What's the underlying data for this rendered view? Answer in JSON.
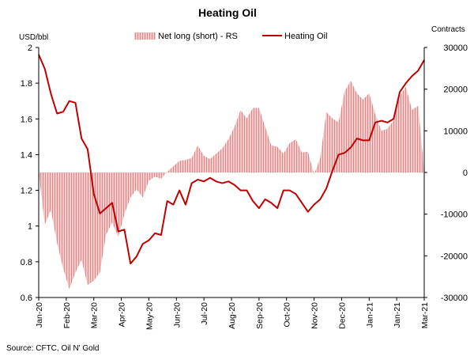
{
  "chart_data": {
    "type": "line",
    "title": "Heating Oil",
    "left_axis_unit": "USD/bbl",
    "right_axis_unit": "Contracts",
    "left_ylim": [
      0.6,
      2.0
    ],
    "left_ticks": [
      "0.6",
      "0.8",
      "1",
      "1.2",
      "1.4",
      "1.6",
      "1.8",
      "2"
    ],
    "right_ylim": [
      -30000,
      30000
    ],
    "right_ticks": [
      "-30000",
      "-20000",
      "-10000",
      "0",
      "10000",
      "20000",
      "30000"
    ],
    "x_labels": [
      "Jan-20",
      "Feb-20",
      "Mar-20",
      "Apr-20",
      "May-20",
      "Jun-20",
      "Jul-20",
      "Aug-20",
      "Sep-20",
      "Oct-20",
      "Nov-20",
      "Dec-20",
      "Jan-21",
      "Jan-21",
      "Mar-21"
    ],
    "grid": false,
    "legend_position": "top",
    "series": [
      {
        "name": "Net long (short) - RS",
        "type": "area",
        "axis": "right",
        "color": "#e6aaaa",
        "values": [
          0,
          -12500,
          -9000,
          -17000,
          -23000,
          -28000,
          -24000,
          -21000,
          -27000,
          -26000,
          -24000,
          -15000,
          -12000,
          -15500,
          -10000,
          -6000,
          -4000,
          -6000,
          -2000,
          -1000,
          -1500,
          200,
          1500,
          2800,
          3000,
          3500,
          6500,
          4000,
          3200,
          4500,
          5800,
          8000,
          11000,
          15000,
          13000,
          15500,
          15500,
          11000,
          6500,
          6200,
          4500,
          7000,
          8000,
          4800,
          5000,
          -500,
          3500,
          14500,
          13000,
          12000,
          19500,
          22000,
          19000,
          17500,
          19000,
          14000,
          10000,
          10500,
          12500,
          18500,
          20500,
          15000,
          16000,
          0
        ],
        "x": [
          0,
          1,
          2,
          3,
          4,
          5,
          6,
          7,
          8,
          9,
          10,
          11,
          12,
          13,
          14,
          15,
          16,
          17,
          18,
          19,
          20,
          21,
          22,
          23,
          24,
          25,
          26,
          27,
          28,
          29,
          30,
          31,
          32,
          33,
          34,
          35,
          36,
          37,
          38,
          39,
          40,
          41,
          42,
          43,
          44,
          45,
          46,
          47,
          48,
          49,
          50,
          51,
          52,
          53,
          54,
          55,
          56,
          57,
          58,
          59,
          60,
          61,
          62,
          63
        ]
      },
      {
        "name": "Heating Oil",
        "type": "line",
        "axis": "left",
        "color": "#c00000",
        "values": [
          1.96,
          1.88,
          1.74,
          1.63,
          1.64,
          1.7,
          1.69,
          1.49,
          1.43,
          1.18,
          1.07,
          1.1,
          1.13,
          0.97,
          0.98,
          0.79,
          0.83,
          0.9,
          0.92,
          0.96,
          0.95,
          1.14,
          1.12,
          1.2,
          1.12,
          1.24,
          1.26,
          1.25,
          1.27,
          1.25,
          1.24,
          1.25,
          1.23,
          1.2,
          1.2,
          1.14,
          1.1,
          1.15,
          1.13,
          1.1,
          1.2,
          1.2,
          1.18,
          1.13,
          1.08,
          1.12,
          1.15,
          1.21,
          1.31,
          1.4,
          1.41,
          1.44,
          1.49,
          1.48,
          1.48,
          1.58,
          1.59,
          1.58,
          1.6,
          1.75,
          1.8,
          1.84,
          1.87,
          1.93
        ],
        "x": [
          0,
          1,
          2,
          3,
          4,
          5,
          6,
          7,
          8,
          9,
          10,
          11,
          12,
          13,
          14,
          15,
          16,
          17,
          18,
          19,
          20,
          21,
          22,
          23,
          24,
          25,
          26,
          27,
          28,
          29,
          30,
          31,
          32,
          33,
          34,
          35,
          36,
          37,
          38,
          39,
          40,
          41,
          42,
          43,
          44,
          45,
          46,
          47,
          48,
          49,
          50,
          51,
          52,
          53,
          54,
          55,
          56,
          57,
          58,
          59,
          60,
          61,
          62,
          63
        ]
      }
    ],
    "source": "Source: CFTC, Oil N' Gold"
  }
}
